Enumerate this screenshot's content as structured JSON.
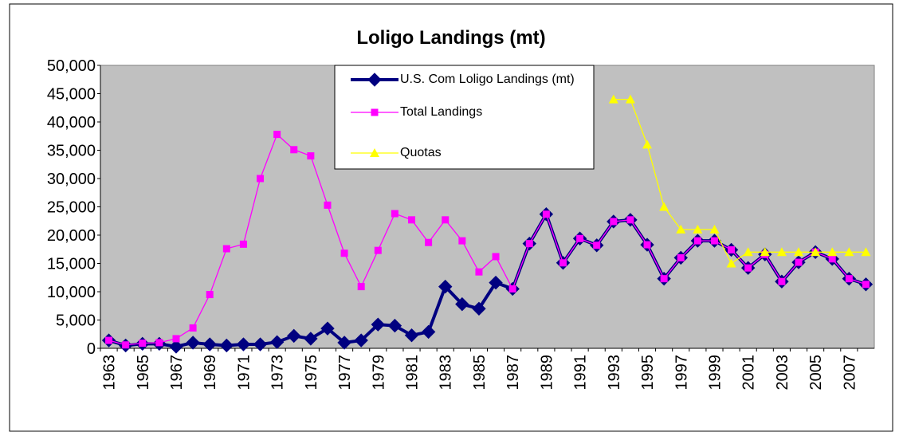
{
  "chart_data": {
    "type": "line",
    "title": "Loligo Landings (mt)",
    "categories": [
      "1963",
      null,
      "1965",
      null,
      "1967",
      null,
      "1969",
      null,
      "1971",
      null,
      "1973",
      null,
      "1975",
      null,
      "1977",
      null,
      "1979",
      null,
      "1981",
      null,
      "1983",
      null,
      "1985",
      null,
      "1987",
      null,
      "1989",
      null,
      "1991",
      null,
      "1993",
      null,
      "1995",
      null,
      "1997",
      null,
      "1999",
      null,
      "2001",
      null,
      "2003",
      null,
      "2005",
      null,
      "2007",
      null
    ],
    "series": [
      {
        "name": "U.S. Com Loligo Landings (mt)",
        "color": "#000080",
        "marker": "diamond",
        "values": [
          1400,
          500,
          800,
          800,
          300,
          1000,
          700,
          500,
          700,
          700,
          1100,
          2200,
          1700,
          3500,
          1000,
          1400,
          4200,
          4000,
          2300,
          2900,
          10900,
          7800,
          7000,
          11600,
          10500,
          18500,
          23700,
          15100,
          19400,
          18200,
          22400,
          22700,
          18300,
          12300,
          16000,
          19000,
          19000,
          17400,
          14200,
          16600,
          11800,
          15200,
          17000,
          15800,
          12300,
          11300
        ]
      },
      {
        "name": "Total Landings",
        "color": "#ff00ff",
        "marker": "square",
        "values": [
          1400,
          600,
          900,
          1000,
          1700,
          3600,
          9500,
          17600,
          18400,
          30000,
          37800,
          35100,
          34000,
          25300,
          16800,
          10900,
          17300,
          23800,
          22700,
          18700,
          22700,
          19000,
          13500,
          16200,
          10500,
          18500,
          23700,
          15100,
          19400,
          18200,
          22400,
          22700,
          18300,
          12300,
          16000,
          19000,
          19000,
          17400,
          14200,
          16600,
          11800,
          15200,
          17000,
          15800,
          12300,
          11300
        ]
      },
      {
        "name": "Quotas",
        "color": "#ffff00",
        "marker": "triangle",
        "values": [
          null,
          null,
          null,
          null,
          null,
          null,
          null,
          null,
          null,
          null,
          null,
          null,
          null,
          null,
          null,
          null,
          null,
          null,
          null,
          null,
          null,
          null,
          null,
          null,
          null,
          null,
          null,
          null,
          null,
          null,
          44000,
          44000,
          36000,
          25000,
          21000,
          21000,
          21000,
          15000,
          17000,
          17000,
          17000,
          17000,
          17000,
          17000,
          17000,
          17000
        ]
      }
    ],
    "ylim": [
      0,
      50000
    ],
    "yticks": [
      0,
      {
        "value": 5000,
        "label": "5,000"
      },
      {
        "value": 10000,
        "label": "10,000"
      },
      {
        "value": 15000,
        "label": "15,000"
      },
      {
        "value": 20000,
        "label": "20,000"
      },
      {
        "value": 25000,
        "label": "25,000"
      },
      {
        "value": 30000,
        "label": "30,000"
      },
      {
        "value": 35000,
        "label": "35,000"
      },
      {
        "value": 40000,
        "label": "40,000"
      },
      {
        "value": 45000,
        "label": "45,000"
      },
      {
        "value": 50000,
        "label": "50,000"
      }
    ],
    "grid": false
  }
}
